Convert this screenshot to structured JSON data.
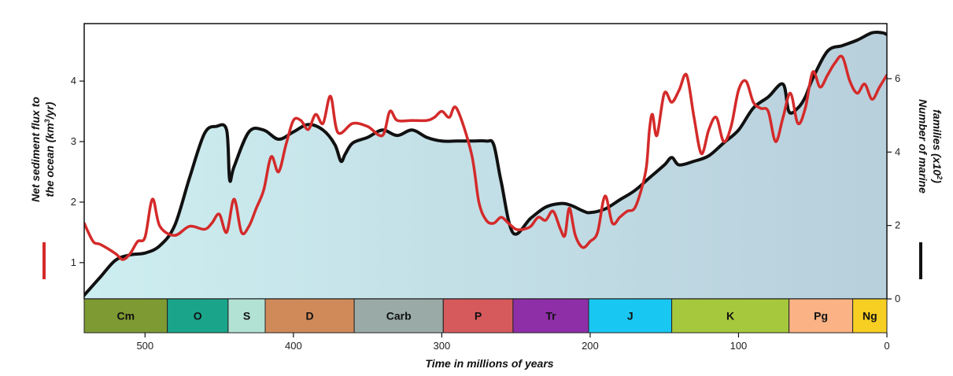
{
  "chart_data": {
    "type": "line",
    "x_axis": {
      "label": "Time in millions of years",
      "range": [
        541,
        0
      ],
      "ticks": [
        500,
        400,
        300,
        200,
        100,
        0
      ]
    },
    "y_left": {
      "label_line1": "Net sediment flux to",
      "label_line2_pre": "the ocean (km",
      "label_line2_sup": "3",
      "label_line2_post": "/yr)",
      "range": [
        0.4,
        4.95
      ],
      "ticks": [
        1,
        2,
        3,
        4
      ],
      "legend_color": "#d42a2a"
    },
    "y_right": {
      "label_line1": "Number of marine",
      "label_line2_pre": "families (x10",
      "label_line2_sup": "2",
      "label_line2_post": ")",
      "range": [
        0,
        7.5
      ],
      "ticks": [
        0,
        2,
        4,
        6
      ],
      "legend_color": "#111111"
    },
    "series": [
      {
        "name": "Number of marine families (x10^2)",
        "axis": "right",
        "color": "#111111",
        "x": [
          541,
          530,
          520,
          510,
          500,
          490,
          480,
          470,
          460,
          452,
          445,
          443,
          440,
          430,
          420,
          410,
          400,
          390,
          380,
          372,
          368,
          365,
          360,
          350,
          340,
          330,
          320,
          310,
          300,
          290,
          280,
          270,
          265,
          260,
          252,
          240,
          230,
          220,
          213,
          205,
          200,
          190,
          180,
          170,
          160,
          150,
          145,
          140,
          130,
          120,
          110,
          100,
          90,
          80,
          70,
          66,
          60,
          55,
          50,
          40,
          30,
          20,
          10,
          3,
          0
        ],
        "values": [
          0.1,
          0.6,
          1.05,
          1.2,
          1.25,
          1.45,
          2.0,
          3.3,
          4.5,
          4.7,
          4.6,
          3.25,
          3.6,
          4.55,
          4.6,
          4.35,
          4.55,
          4.75,
          4.6,
          4.2,
          3.75,
          3.95,
          4.25,
          4.4,
          4.6,
          4.45,
          4.6,
          4.4,
          4.3,
          4.3,
          4.3,
          4.3,
          4.2,
          3.2,
          1.8,
          2.2,
          2.5,
          2.6,
          2.55,
          2.4,
          2.35,
          2.45,
          2.7,
          2.95,
          3.3,
          3.65,
          3.85,
          3.65,
          3.75,
          3.9,
          4.25,
          4.6,
          5.2,
          5.5,
          5.85,
          5.1,
          5.2,
          5.5,
          6.0,
          6.75,
          6.9,
          7.05,
          7.25,
          7.25,
          7.2
        ]
      },
      {
        "name": "Net sediment flux to the ocean (km3/yr)",
        "axis": "left",
        "color": "#d42a2a",
        "x": [
          541,
          535,
          530,
          520,
          515,
          510,
          505,
          500,
          495,
          490,
          480,
          470,
          460,
          455,
          450,
          445,
          440,
          435,
          430,
          425,
          420,
          415,
          410,
          405,
          400,
          395,
          390,
          385,
          380,
          375,
          370,
          360,
          350,
          340,
          335,
          330,
          320,
          310,
          305,
          300,
          295,
          290,
          280,
          275,
          270,
          265,
          260,
          255,
          250,
          245,
          240,
          235,
          230,
          225,
          220,
          217,
          214,
          210,
          205,
          200,
          195,
          190,
          185,
          180,
          175,
          170,
          165,
          162,
          160,
          158,
          155,
          150,
          145,
          140,
          135,
          130,
          125,
          120,
          115,
          110,
          105,
          100,
          95,
          90,
          85,
          80,
          75,
          70,
          65,
          60,
          55,
          50,
          45,
          40,
          35,
          30,
          25,
          20,
          15,
          10,
          5,
          0
        ],
        "values": [
          1.65,
          1.35,
          1.3,
          1.15,
          1.05,
          1.15,
          1.35,
          1.42,
          2.05,
          1.6,
          1.45,
          1.6,
          1.55,
          1.65,
          1.8,
          1.5,
          2.05,
          1.5,
          1.6,
          1.9,
          2.2,
          2.75,
          2.5,
          2.95,
          3.35,
          3.35,
          3.2,
          3.45,
          3.3,
          3.75,
          3.15,
          3.3,
          3.25,
          3.1,
          3.5,
          3.35,
          3.35,
          3.35,
          3.4,
          3.5,
          3.4,
          3.55,
          2.8,
          2.0,
          1.7,
          1.65,
          1.75,
          1.65,
          1.55,
          1.55,
          1.6,
          1.75,
          1.7,
          1.85,
          1.55,
          1.45,
          1.9,
          1.45,
          1.25,
          1.35,
          1.5,
          2.1,
          1.65,
          1.75,
          1.85,
          1.9,
          2.25,
          2.6,
          3.2,
          3.45,
          3.1,
          3.8,
          3.65,
          3.85,
          4.1,
          3.4,
          2.8,
          3.2,
          3.4,
          3.0,
          3.25,
          3.85,
          4.0,
          3.65,
          3.55,
          3.5,
          3.0,
          3.4,
          3.8,
          3.3,
          3.55,
          4.15,
          3.9,
          4.1,
          4.3,
          4.4,
          4.0,
          3.8,
          3.95,
          3.7,
          3.9,
          4.1
        ]
      }
    ],
    "periods": [
      {
        "label": "Cm",
        "start": 541,
        "end": 485,
        "color": "#7e9a32"
      },
      {
        "label": "O",
        "start": 485,
        "end": 444,
        "color": "#1aa58a"
      },
      {
        "label": "S",
        "start": 444,
        "end": 419,
        "color": "#b2e2d4"
      },
      {
        "label": "D",
        "start": 419,
        "end": 359,
        "color": "#d08a5a"
      },
      {
        "label": "Carb",
        "start": 359,
        "end": 299,
        "color": "#9aaba7"
      },
      {
        "label": "P",
        "start": 299,
        "end": 252,
        "color": "#d65a5c"
      },
      {
        "label": "Tr",
        "start": 252,
        "end": 201,
        "color": "#8e2fa8"
      },
      {
        "label": "J",
        "start": 201,
        "end": 145,
        "color": "#19c8f2"
      },
      {
        "label": "K",
        "start": 145,
        "end": 66,
        "color": "#a6c83c"
      },
      {
        "label": "Pg",
        "start": 66,
        "end": 23,
        "color": "#fbb284"
      },
      {
        "label": "Ng",
        "start": 23,
        "end": 0,
        "color": "#f7cf22"
      }
    ],
    "fill_gradient": [
      "#cdeef0",
      "#b8cfdc"
    ]
  }
}
